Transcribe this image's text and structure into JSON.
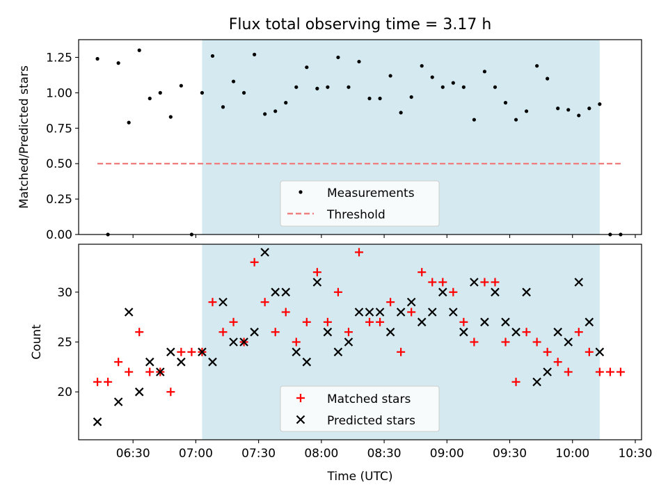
{
  "chart_data": [
    {
      "type": "scatter",
      "title": "Flux total observing time = 3.17 h",
      "xlabel": "",
      "ylabel": "Matched/Predicted stars",
      "ylim": [
        0,
        1.375
      ],
      "yticks": [
        "0.00",
        "0.25",
        "0.50",
        "0.75",
        "1.00",
        "1.25"
      ],
      "xlim": [
        "06:04",
        "10:33"
      ],
      "xticks": [
        "06:30",
        "07:00",
        "07:30",
        "08:00",
        "08:30",
        "09:00",
        "09:30",
        "10:00",
        "10:30"
      ],
      "shade_range": [
        "07:03",
        "10:13"
      ],
      "shade_color": "#d4eaf0",
      "threshold": {
        "name": "Threshold",
        "value": 0.5,
        "x_range": [
          "06:13",
          "10:23"
        ],
        "color": "#f08080"
      },
      "series": [
        {
          "name": "Measurements",
          "color": "#000000",
          "points": [
            [
              "06:13",
              1.24
            ],
            [
              "06:18",
              0.0
            ],
            [
              "06:23",
              1.21
            ],
            [
              "06:28",
              0.79
            ],
            [
              "06:33",
              1.3
            ],
            [
              "06:38",
              0.96
            ],
            [
              "06:43",
              1.0
            ],
            [
              "06:48",
              0.83
            ],
            [
              "06:53",
              1.05
            ],
            [
              "06:58",
              0.0
            ],
            [
              "07:03",
              1.0
            ],
            [
              "07:08",
              1.26
            ],
            [
              "07:13",
              0.9
            ],
            [
              "07:18",
              1.08
            ],
            [
              "07:23",
              1.0
            ],
            [
              "07:28",
              1.27
            ],
            [
              "07:33",
              0.85
            ],
            [
              "07:38",
              0.87
            ],
            [
              "07:43",
              0.93
            ],
            [
              "07:48",
              1.04
            ],
            [
              "07:53",
              1.18
            ],
            [
              "07:58",
              1.03
            ],
            [
              "08:03",
              1.04
            ],
            [
              "08:08",
              1.25
            ],
            [
              "08:13",
              1.04
            ],
            [
              "08:18",
              1.22
            ],
            [
              "08:23",
              0.96
            ],
            [
              "08:28",
              0.96
            ],
            [
              "08:33",
              1.12
            ],
            [
              "08:38",
              0.86
            ],
            [
              "08:43",
              0.97
            ],
            [
              "08:48",
              1.19
            ],
            [
              "08:53",
              1.11
            ],
            [
              "08:58",
              1.04
            ],
            [
              "09:03",
              1.07
            ],
            [
              "09:08",
              1.04
            ],
            [
              "09:13",
              0.81
            ],
            [
              "09:18",
              1.15
            ],
            [
              "09:23",
              1.04
            ],
            [
              "09:28",
              0.93
            ],
            [
              "09:33",
              0.81
            ],
            [
              "09:38",
              0.87
            ],
            [
              "09:43",
              1.19
            ],
            [
              "09:48",
              1.1
            ],
            [
              "09:53",
              0.89
            ],
            [
              "09:58",
              0.88
            ],
            [
              "10:03",
              0.84
            ],
            [
              "10:08",
              0.89
            ],
            [
              "10:13",
              0.92
            ],
            [
              "10:18",
              0.0
            ],
            [
              "10:23",
              0.0
            ]
          ]
        }
      ],
      "legend": {
        "position": "lower center",
        "entries": [
          "Measurements",
          "Threshold"
        ]
      }
    },
    {
      "type": "scatter",
      "title": "",
      "xlabel": "Time (UTC)",
      "ylabel": "Count",
      "ylim": [
        15.2,
        34.8
      ],
      "yticks": [
        "20",
        "25",
        "30"
      ],
      "xlim": [
        "06:04",
        "10:33"
      ],
      "xticks": [
        "06:30",
        "07:00",
        "07:30",
        "08:00",
        "08:30",
        "09:00",
        "09:30",
        "10:00",
        "10:30"
      ],
      "shade_range": [
        "07:03",
        "10:13"
      ],
      "shade_color": "#d4eaf0",
      "series": [
        {
          "name": "Matched stars",
          "color": "#ff0000",
          "marker": "plus",
          "points": [
            [
              "06:13",
              21
            ],
            [
              "06:18",
              21
            ],
            [
              "06:23",
              23
            ],
            [
              "06:28",
              22
            ],
            [
              "06:33",
              26
            ],
            [
              "06:38",
              22
            ],
            [
              "06:43",
              22
            ],
            [
              "06:48",
              20
            ],
            [
              "06:53",
              24
            ],
            [
              "06:58",
              24
            ],
            [
              "07:03",
              24
            ],
            [
              "07:08",
              29
            ],
            [
              "07:13",
              26
            ],
            [
              "07:18",
              27
            ],
            [
              "07:23",
              25
            ],
            [
              "07:28",
              33
            ],
            [
              "07:33",
              29
            ],
            [
              "07:38",
              26
            ],
            [
              "07:43",
              28
            ],
            [
              "07:48",
              25
            ],
            [
              "07:53",
              27
            ],
            [
              "07:58",
              32
            ],
            [
              "08:03",
              27
            ],
            [
              "08:08",
              30
            ],
            [
              "08:13",
              26
            ],
            [
              "08:18",
              34
            ],
            [
              "08:23",
              27
            ],
            [
              "08:28",
              27
            ],
            [
              "08:33",
              29
            ],
            [
              "08:38",
              24
            ],
            [
              "08:43",
              28
            ],
            [
              "08:48",
              32
            ],
            [
              "08:53",
              31
            ],
            [
              "08:58",
              31
            ],
            [
              "09:03",
              30
            ],
            [
              "09:08",
              27
            ],
            [
              "09:13",
              25
            ],
            [
              "09:18",
              31
            ],
            [
              "09:23",
              31
            ],
            [
              "09:28",
              25
            ],
            [
              "09:33",
              21
            ],
            [
              "09:38",
              26
            ],
            [
              "09:43",
              25
            ],
            [
              "09:48",
              24
            ],
            [
              "09:53",
              23
            ],
            [
              "09:58",
              22
            ],
            [
              "10:03",
              26
            ],
            [
              "10:08",
              24
            ],
            [
              "10:13",
              22
            ],
            [
              "10:18",
              22
            ],
            [
              "10:23",
              22
            ]
          ]
        },
        {
          "name": "Predicted stars",
          "color": "#000000",
          "marker": "x",
          "points": [
            [
              "06:13",
              17
            ],
            [
              "06:23",
              19
            ],
            [
              "06:28",
              28
            ],
            [
              "06:33",
              20
            ],
            [
              "06:38",
              23
            ],
            [
              "06:43",
              22
            ],
            [
              "06:48",
              24
            ],
            [
              "06:53",
              23
            ],
            [
              "07:03",
              24
            ],
            [
              "07:08",
              23
            ],
            [
              "07:13",
              29
            ],
            [
              "07:18",
              25
            ],
            [
              "07:23",
              25
            ],
            [
              "07:28",
              26
            ],
            [
              "07:33",
              34
            ],
            [
              "07:38",
              30
            ],
            [
              "07:43",
              30
            ],
            [
              "07:48",
              24
            ],
            [
              "07:53",
              23
            ],
            [
              "07:58",
              31
            ],
            [
              "08:03",
              26
            ],
            [
              "08:08",
              24
            ],
            [
              "08:13",
              25
            ],
            [
              "08:18",
              28
            ],
            [
              "08:23",
              28
            ],
            [
              "08:28",
              28
            ],
            [
              "08:33",
              26
            ],
            [
              "08:38",
              28
            ],
            [
              "08:43",
              29
            ],
            [
              "08:48",
              27
            ],
            [
              "08:53",
              28
            ],
            [
              "08:58",
              30
            ],
            [
              "09:03",
              28
            ],
            [
              "09:08",
              26
            ],
            [
              "09:13",
              31
            ],
            [
              "09:18",
              27
            ],
            [
              "09:23",
              30
            ],
            [
              "09:28",
              27
            ],
            [
              "09:33",
              26
            ],
            [
              "09:38",
              30
            ],
            [
              "09:43",
              21
            ],
            [
              "09:48",
              22
            ],
            [
              "09:53",
              26
            ],
            [
              "09:58",
              25
            ],
            [
              "10:03",
              31
            ],
            [
              "10:08",
              27
            ],
            [
              "10:13",
              24
            ]
          ]
        }
      ],
      "legend": {
        "position": "lower center",
        "entries": [
          "Matched stars",
          "Predicted stars"
        ]
      }
    }
  ]
}
